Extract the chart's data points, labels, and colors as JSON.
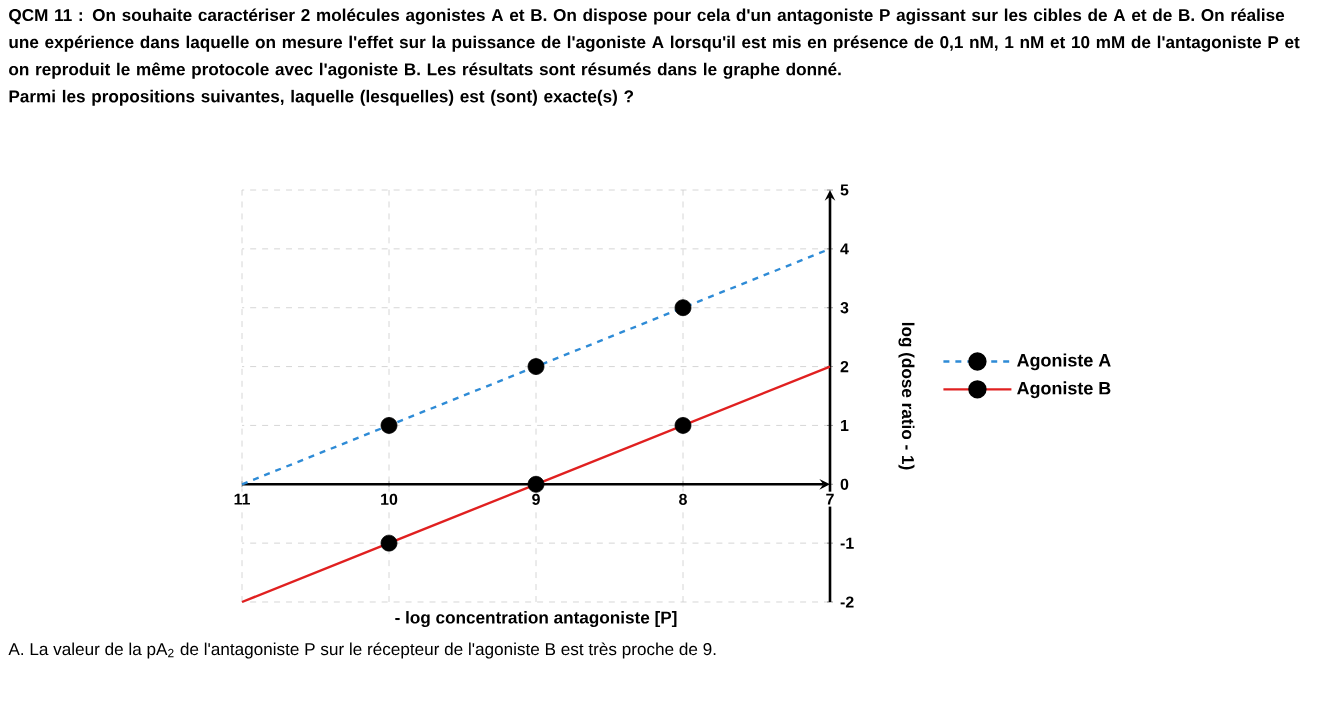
{
  "chart_data": {
    "type": "line",
    "title": "QCM 11 : On souhaite caractériser 2 molécules agonistes A et B. On dispose pour cela d'un antagoniste P agissant sur les cibles de A et de B. On réalise une expérience dans laquelle on mesure l'effet sur la puissance de l'agoniste A lorsqu'il est mis en présence de 0,1 nM, 1 nM et 10 mM de l'antagoniste P et on reproduit le même protocole avec l'agoniste B. Les résultats sont résumés dans le graphe donné.",
    "subtitle": "Parmi les propositions suivantes, laquelle (lesquelles) est (sont) exacte(s) ?",
    "xlabel": "- log concentration antagoniste [P]",
    "ylabel": "log (dose ratio - 1)",
    "annotations": [
      "A. La valeur de la pA$_{2}$ de l'antagoniste P sur le récepteur de l'agoniste B est très proche de 9."
    ],
    "xlim": [
      11,
      7
    ],
    "xticks": [
      11,
      10,
      9,
      8,
      7
    ],
    "ylim": [
      -2,
      5
    ],
    "yticks": [
      -2,
      -1,
      0,
      1,
      2,
      3,
      4,
      5
    ],
    "grid": true,
    "legend": "right",
    "series": [
      {
        "name": "Agoniste A",
        "color": "#2e8bd6",
        "line_style": "dashed",
        "marker": "none",
        "x": [
          11,
          10,
          9,
          8,
          7
        ],
        "values": [
          0,
          1,
          2,
          3,
          4
        ]
      },
      {
        "name": "Agoniste B",
        "color": "#e02020",
        "line_style": "solid",
        "marker": "none",
        "x": [
          11,
          10,
          9,
          8,
          7
        ],
        "values": [
          -2,
          -1,
          0,
          1,
          2
        ]
      },
      {
        "type": "scatter",
        "color": "#000000",
        "marker": "circle",
        "x": [
          10,
          9,
          8
        ],
        "values": [
          1,
          2,
          3
        ]
      },
      {
        "type": "scatter",
        "color": "#000000",
        "marker": "circle",
        "x": [
          10,
          9,
          8
        ],
        "values": [
          -1,
          0,
          1
        ]
      }
    ]
  }
}
